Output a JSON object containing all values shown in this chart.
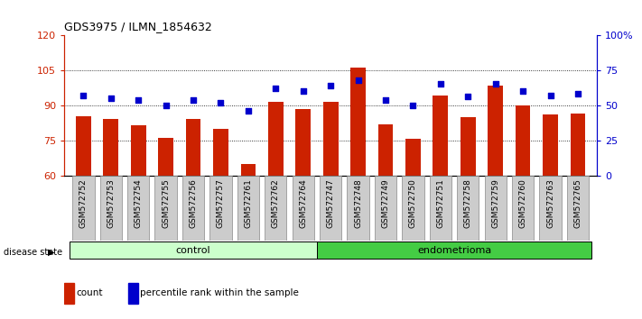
{
  "title": "GDS3975 / ILMN_1854632",
  "samples": [
    "GSM572752",
    "GSM572753",
    "GSM572754",
    "GSM572755",
    "GSM572756",
    "GSM572757",
    "GSM572761",
    "GSM572762",
    "GSM572764",
    "GSM572747",
    "GSM572748",
    "GSM572749",
    "GSM572750",
    "GSM572751",
    "GSM572758",
    "GSM572759",
    "GSM572760",
    "GSM572763",
    "GSM572765"
  ],
  "count_values": [
    85.5,
    84.0,
    81.5,
    76.0,
    84.0,
    80.0,
    65.0,
    91.5,
    88.5,
    91.5,
    106.0,
    82.0,
    75.5,
    94.0,
    85.0,
    98.5,
    90.0,
    86.0,
    86.5
  ],
  "percentile_values": [
    57,
    55,
    54,
    50,
    54,
    52,
    46,
    62,
    60,
    64,
    68,
    54,
    50,
    65,
    56,
    65,
    60,
    57,
    58
  ],
  "control_count": 9,
  "endometrioma_count": 10,
  "ylim_left": [
    60,
    120
  ],
  "ylim_right": [
    0,
    100
  ],
  "yticks_left": [
    60,
    75,
    90,
    105,
    120
  ],
  "yticks_right": [
    0,
    25,
    50,
    75,
    100
  ],
  "ytick_labels_right": [
    "0",
    "25",
    "50",
    "75",
    "100%"
  ],
  "bar_color": "#cc2200",
  "marker_color": "#0000cc",
  "control_bg_light": "#ccffcc",
  "endo_bg": "#44cc44",
  "tick_bg": "#cccccc",
  "grid_color": "#000000",
  "legend_count_label": "count",
  "legend_pct_label": "percentile rank within the sample",
  "disease_state_label": "disease state",
  "control_label": "control",
  "endo_label": "endometrioma"
}
